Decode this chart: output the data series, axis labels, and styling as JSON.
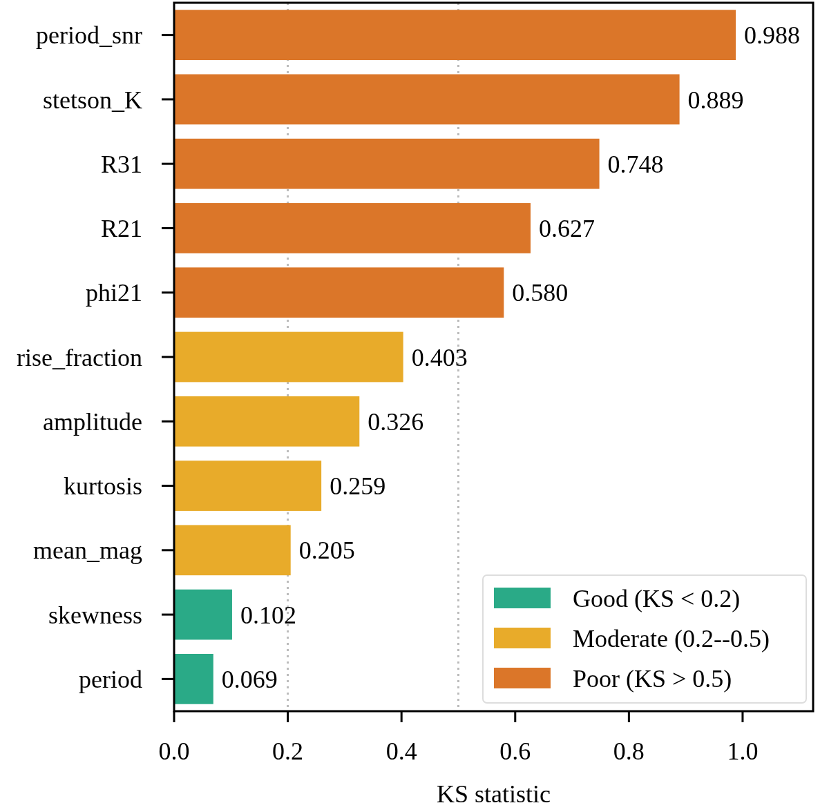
{
  "chart_data": {
    "type": "bar",
    "orientation": "horizontal",
    "categories": [
      "period_snr",
      "stetson_K",
      "R31",
      "R21",
      "phi21",
      "rise_fraction",
      "amplitude",
      "kurtosis",
      "mean_mag",
      "skewness",
      "period"
    ],
    "series": [
      {
        "name": "Good (KS < 0.2)",
        "color": "#2aaa87",
        "values": [
          null,
          null,
          null,
          null,
          null,
          null,
          null,
          null,
          null,
          0.102,
          0.069
        ],
        "value_labels": [
          null,
          null,
          null,
          null,
          null,
          null,
          null,
          null,
          null,
          "0.102",
          "0.069"
        ]
      },
      {
        "name": "Moderate (0.2--0.5)",
        "color": "#e8ab2a",
        "values": [
          null,
          null,
          null,
          null,
          null,
          0.403,
          0.326,
          0.259,
          0.205,
          null,
          null
        ],
        "value_labels": [
          null,
          null,
          null,
          null,
          null,
          "0.403",
          "0.326",
          "0.259",
          "0.205",
          null,
          null
        ]
      },
      {
        "name": "Poor (KS > 0.5)",
        "color": "#db7629",
        "values": [
          0.988,
          0.889,
          0.748,
          0.627,
          0.58,
          null,
          null,
          null,
          null,
          null,
          null
        ],
        "value_labels": [
          "0.988",
          "0.889",
          "0.748",
          "0.627",
          "0.580",
          null,
          null,
          null,
          null,
          null,
          null
        ]
      }
    ],
    "xlabel": "KS statistic",
    "xlim": [
      0,
      1.124
    ],
    "xticks": [
      {
        "value": 0,
        "label": "0.0"
      },
      {
        "value": 0.2,
        "label": "0.2"
      },
      {
        "value": 0.4,
        "label": "0.4"
      },
      {
        "value": 0.6,
        "label": "0.6"
      },
      {
        "value": 0.8,
        "label": "0.8"
      },
      {
        "value": 1,
        "label": "1.0"
      }
    ],
    "ref_lines": [
      {
        "axis": "x",
        "value": 0.2,
        "color": "#bbbbbb",
        "line_style": "dotted"
      },
      {
        "axis": "x",
        "value": 0.5,
        "color": "#bbbbbb",
        "line_style": "dotted"
      }
    ],
    "legend": "bottom right",
    "grid": false
  }
}
